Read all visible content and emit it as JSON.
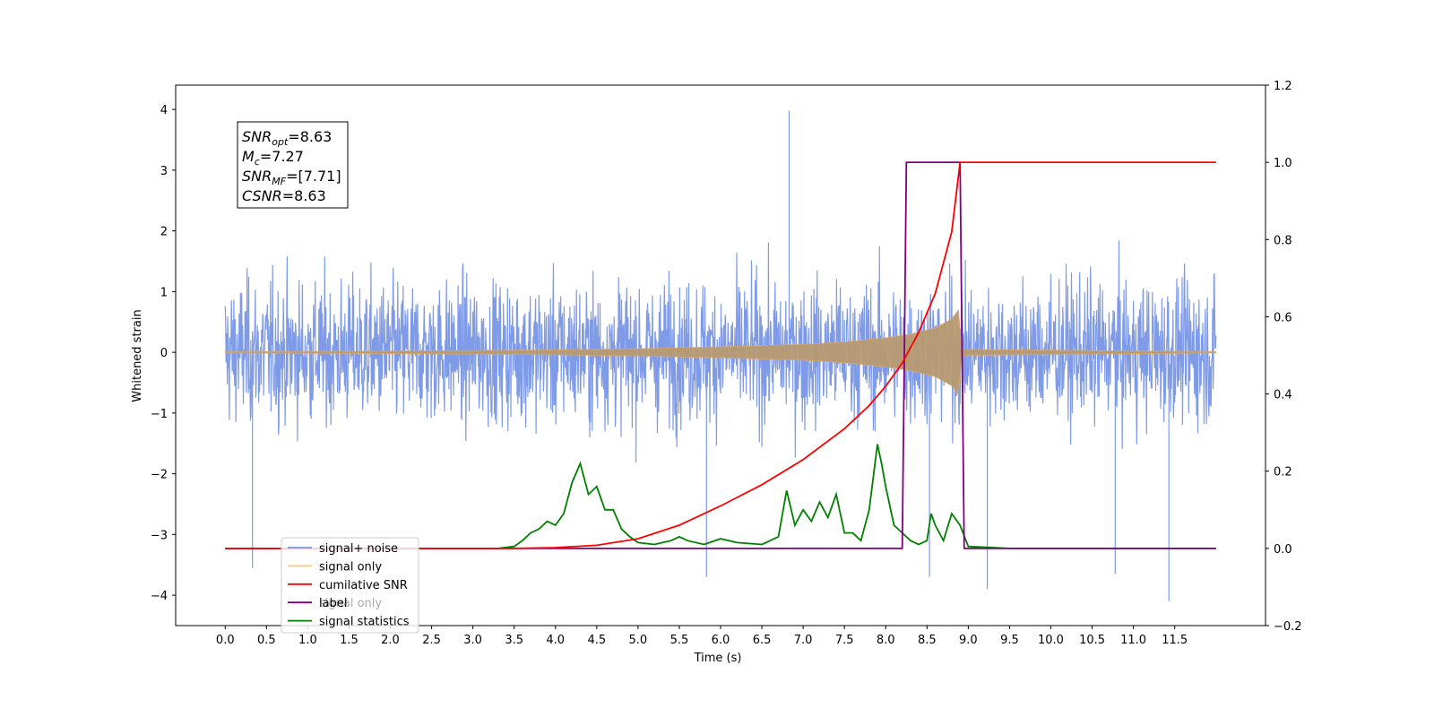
{
  "chart_data": {
    "type": "line",
    "title": "",
    "xlabel": "Time (s)",
    "ylabel": "Whitened strain",
    "y2label": "",
    "xlim": [
      -0.6,
      12.6
    ],
    "ylim": [
      -4.5,
      4.4
    ],
    "y2lim": [
      -0.2,
      1.2
    ],
    "x_ticks": [
      "0.0",
      "0.5",
      "1.0",
      "1.5",
      "2.0",
      "2.5",
      "3.0",
      "3.5",
      "4.0",
      "4.5",
      "5.0",
      "5.5",
      "6.0",
      "6.5",
      "7.0",
      "7.5",
      "8.0",
      "8.5",
      "9.0",
      "9.5",
      "10.0",
      "10.5",
      "11.0",
      "11.5"
    ],
    "y_ticks": [
      "4",
      "3",
      "2",
      "1",
      "0",
      "−1",
      "−2",
      "−3",
      "−4"
    ],
    "y2_ticks": [
      "1.2",
      "1.0",
      "0.8",
      "0.6",
      "0.4",
      "0.2",
      "0.0",
      "−0.2"
    ],
    "grid": false,
    "legend_position": "lower-left",
    "legend": [
      {
        "label": "signal+ noise",
        "color": "#7896e6"
      },
      {
        "label": "signal only",
        "color": "#ffc86e"
      },
      {
        "label": "cumilative SNR",
        "color": "#ff0000"
      },
      {
        "label": "label",
        "color": "#800080"
      },
      {
        "label": "signal statistics",
        "color": "#008000"
      }
    ],
    "legend_hidden_text": "signal only",
    "annotation": {
      "lines": [
        {
          "base": "SNR",
          "sub": "opt",
          "rest": "=8.63"
        },
        {
          "base": "M",
          "sub": "c",
          "rest": "=7.27"
        },
        {
          "base": "SNR",
          "sub": "MF",
          "rest": "=[7.71]"
        },
        {
          "base": "CSNR",
          "sub": "",
          "rest": "=8.63"
        }
      ]
    },
    "series": [
      {
        "name": "signal+ noise",
        "axis": "left",
        "color": "#7896e6",
        "description_range": [
          0.0,
          12.0
        ],
        "amplitude_typical": 1.8,
        "peaks": [
          [
            6.83,
            3.98
          ],
          [
            0.33,
            -3.55
          ],
          [
            11.43,
            -4.1
          ],
          [
            8.53,
            -3.7
          ],
          [
            9.23,
            -3.9
          ],
          [
            5.83,
            -3.7
          ],
          [
            10.78,
            -3.65
          ]
        ]
      },
      {
        "name": "signal only",
        "axis": "left",
        "color": "#ffc86e",
        "envelope": [
          [
            0.0,
            0.01
          ],
          [
            2.0,
            0.02
          ],
          [
            4.0,
            0.04
          ],
          [
            5.0,
            0.06
          ],
          [
            6.0,
            0.09
          ],
          [
            7.0,
            0.13
          ],
          [
            7.5,
            0.17
          ],
          [
            8.0,
            0.24
          ],
          [
            8.3,
            0.3
          ],
          [
            8.6,
            0.4
          ],
          [
            8.8,
            0.55
          ],
          [
            8.88,
            0.7
          ],
          [
            8.92,
            0.05
          ],
          [
            12.0,
            0.01
          ]
        ]
      },
      {
        "name": "cumilative SNR",
        "axis": "right",
        "color": "#ff0000",
        "x": [
          0.0,
          3.5,
          4.0,
          4.5,
          5.0,
          5.5,
          6.0,
          6.5,
          7.0,
          7.5,
          7.8,
          8.0,
          8.2,
          8.4,
          8.6,
          8.8,
          8.9,
          8.91,
          12.0
        ],
        "y": [
          0.0,
          0.0,
          0.002,
          0.008,
          0.025,
          0.06,
          0.11,
          0.165,
          0.23,
          0.31,
          0.37,
          0.42,
          0.48,
          0.56,
          0.66,
          0.82,
          1.0,
          1.0,
          1.0
        ]
      },
      {
        "name": "label",
        "axis": "right",
        "color": "#800080",
        "x": [
          0.0,
          8.2,
          8.25,
          8.9,
          8.95,
          12.0
        ],
        "y": [
          0.0,
          0.0,
          1.0,
          1.0,
          0.0,
          0.0
        ]
      },
      {
        "name": "signal statistics",
        "axis": "right",
        "color": "#008000",
        "x": [
          0.0,
          3.3,
          3.5,
          3.6,
          3.7,
          3.8,
          3.9,
          4.0,
          4.1,
          4.2,
          4.3,
          4.4,
          4.5,
          4.6,
          4.7,
          4.8,
          4.9,
          5.0,
          5.2,
          5.4,
          5.5,
          5.6,
          5.8,
          6.0,
          6.2,
          6.5,
          6.7,
          6.8,
          6.9,
          7.0,
          7.1,
          7.2,
          7.3,
          7.4,
          7.5,
          7.6,
          7.7,
          7.8,
          7.9,
          7.95,
          8.0,
          8.1,
          8.2,
          8.3,
          8.4,
          8.5,
          8.55,
          8.6,
          8.7,
          8.8,
          8.9,
          9.0,
          9.5,
          12.0
        ],
        "y": [
          0.0,
          0.0,
          0.005,
          0.02,
          0.04,
          0.05,
          0.07,
          0.06,
          0.09,
          0.17,
          0.22,
          0.14,
          0.16,
          0.1,
          0.1,
          0.05,
          0.03,
          0.015,
          0.01,
          0.02,
          0.03,
          0.02,
          0.01,
          0.025,
          0.015,
          0.01,
          0.03,
          0.15,
          0.06,
          0.1,
          0.07,
          0.12,
          0.08,
          0.14,
          0.04,
          0.04,
          0.02,
          0.1,
          0.27,
          0.22,
          0.16,
          0.06,
          0.04,
          0.02,
          0.01,
          0.02,
          0.09,
          0.06,
          0.02,
          0.09,
          0.06,
          0.005,
          0.0,
          0.0
        ]
      }
    ]
  }
}
